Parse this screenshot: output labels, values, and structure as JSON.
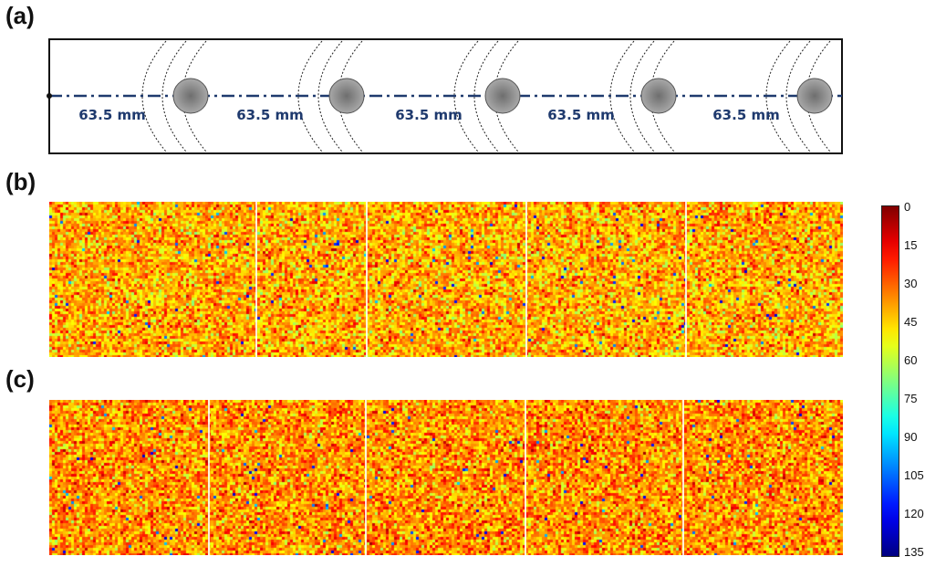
{
  "panels": {
    "a": "(a)",
    "b": "(b)",
    "c": "(c)"
  },
  "schematic": {
    "spacing_labels": [
      "63.5 mm",
      "63.5 mm",
      "63.5 mm",
      "63.5 mm",
      "63.5 mm"
    ],
    "circle_count": 5,
    "colors": {
      "centerline": "#1f3a6e",
      "label": "#1f3a6e",
      "circle": "#8a8a8a"
    }
  },
  "colorbar": {
    "ticks": [
      "0",
      "15",
      "30",
      "45",
      "60",
      "75",
      "90",
      "105",
      "120",
      "135"
    ],
    "min": 0,
    "max": 135,
    "colormap": "jet",
    "direction": "reversed"
  },
  "maps": {
    "b": {
      "segments": 5,
      "dominant_value": 40
    },
    "c": {
      "segments": 5,
      "dominant_value": 36
    }
  }
}
